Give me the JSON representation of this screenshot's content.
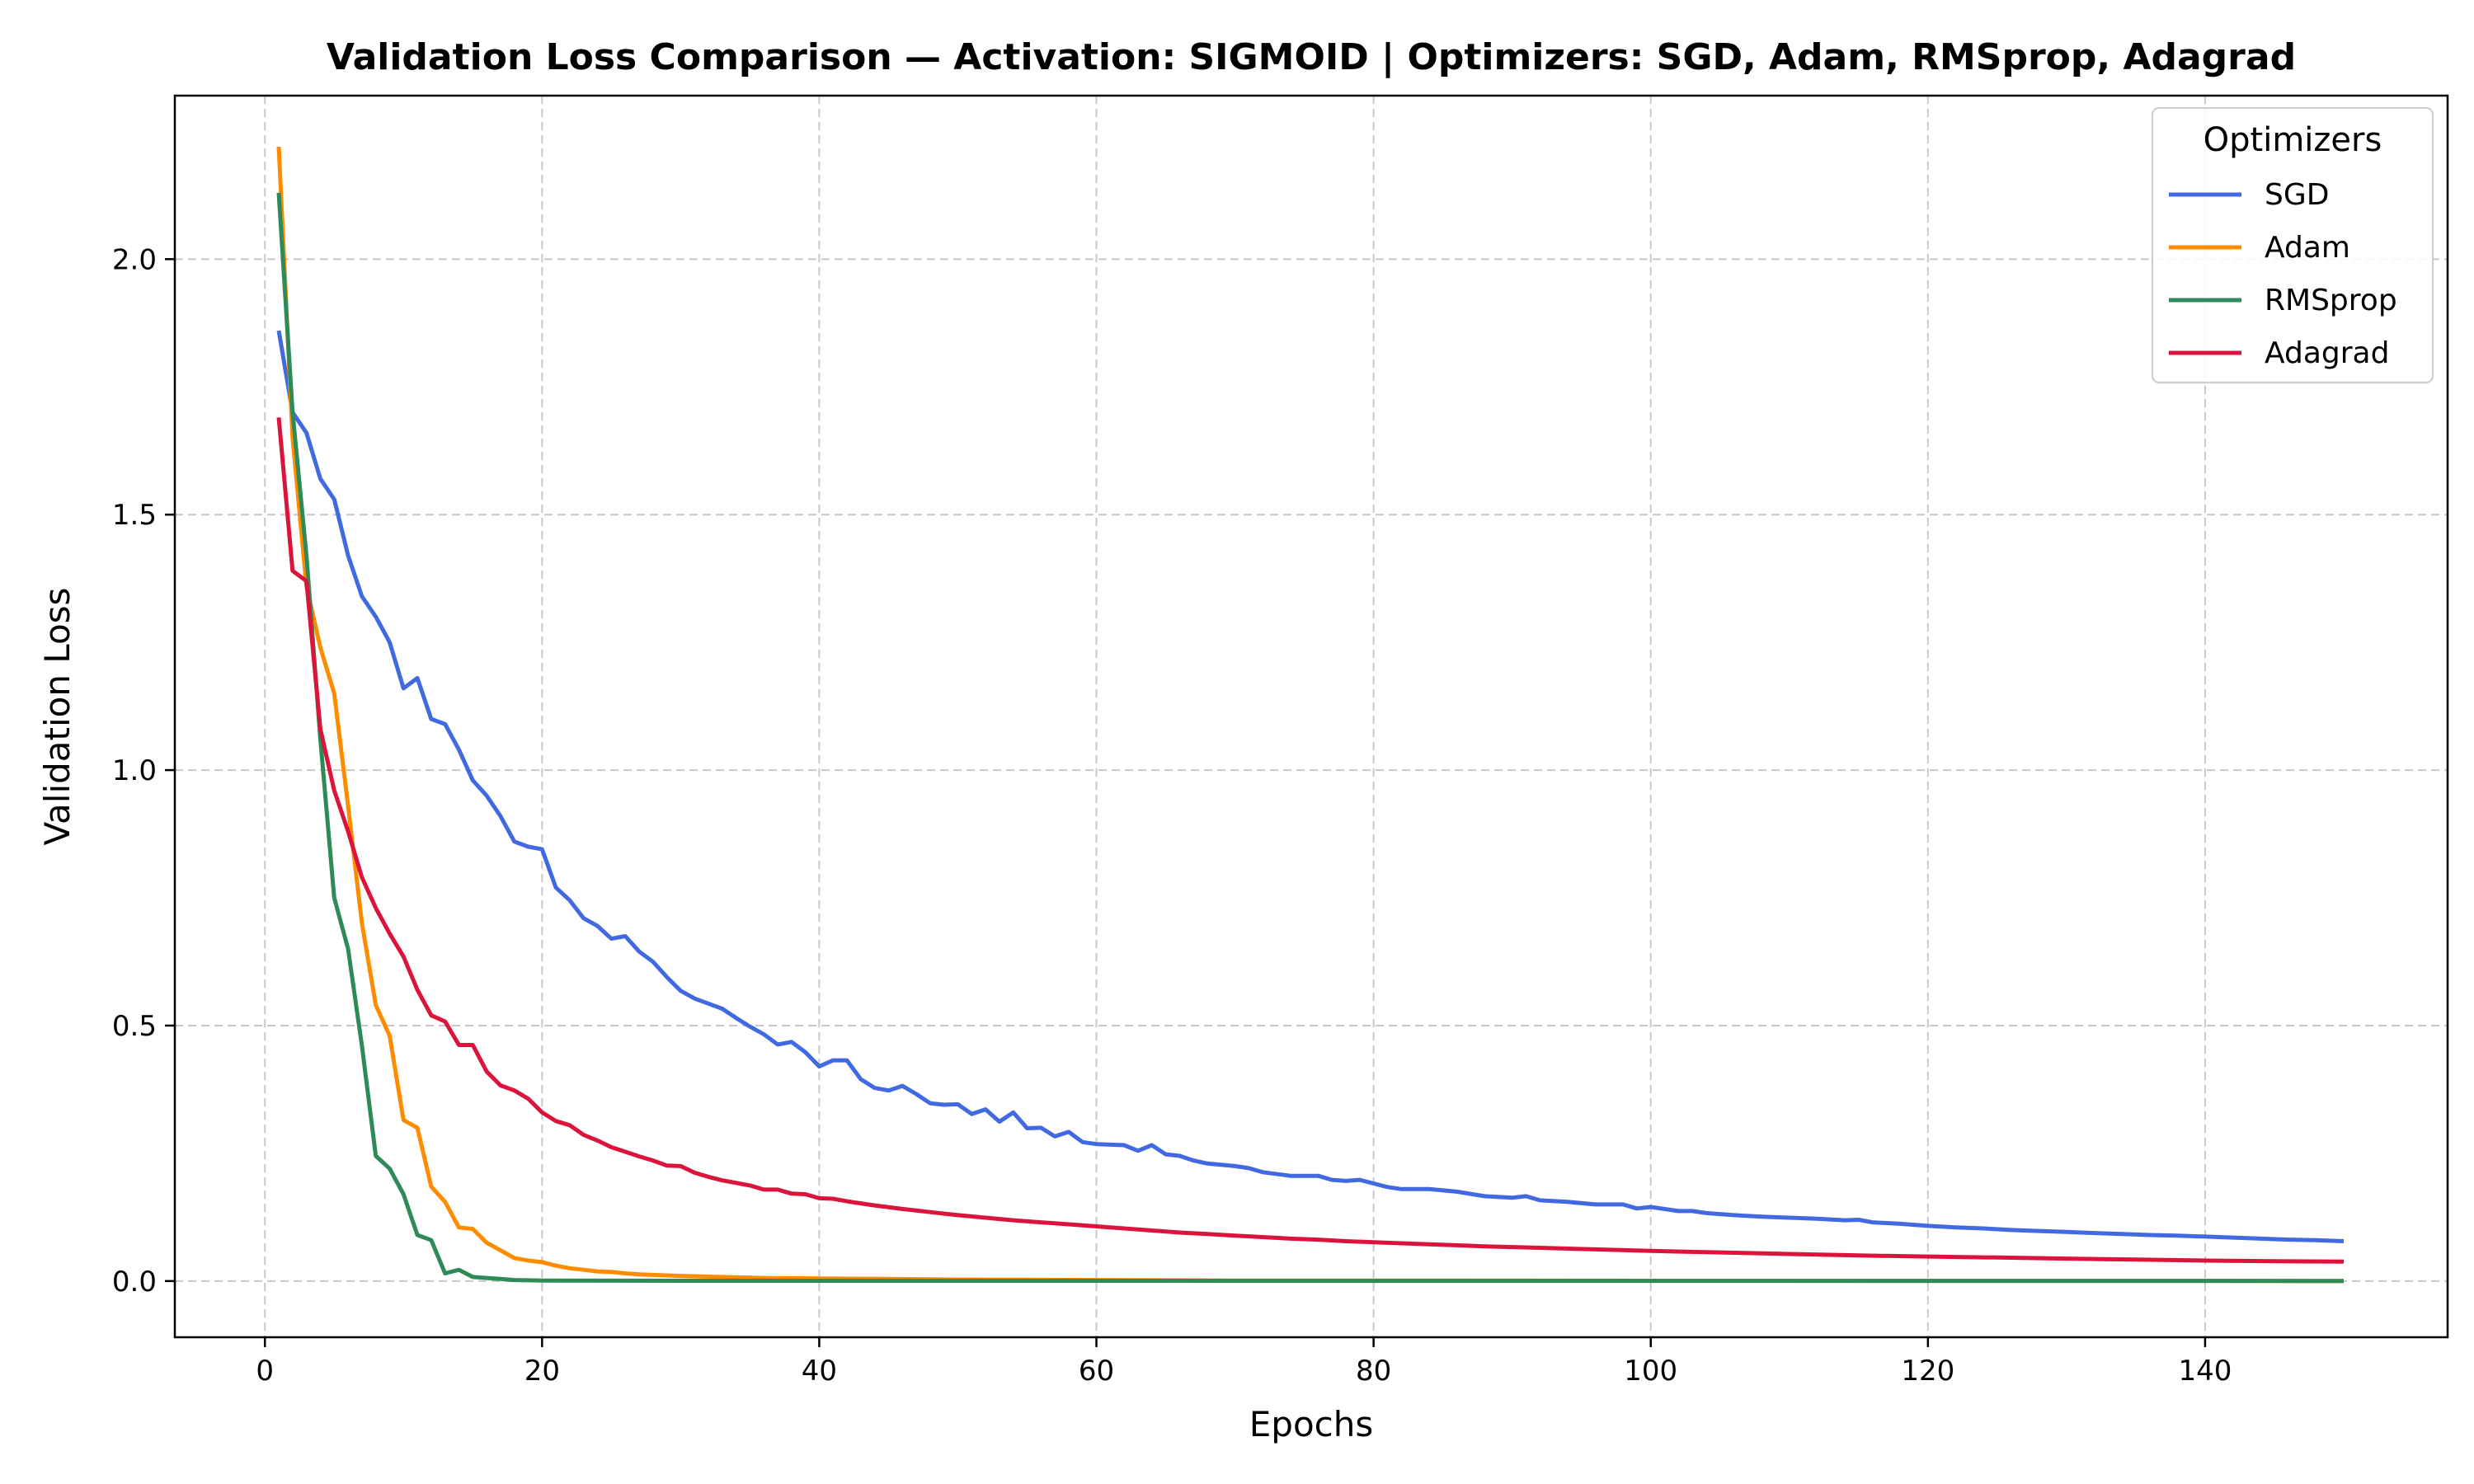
{
  "chart_data": {
    "type": "line",
    "title": "Validation Loss Comparison — Activation: SIGMOID | Optimizers: SGD, Adam, RMSprop, Adagrad",
    "xlabel": "Epochs",
    "ylabel": "Validation Loss",
    "xlim": [
      -6.5,
      157.5
    ],
    "ylim": [
      -0.11,
      2.32
    ],
    "xticks": [
      0,
      20,
      40,
      60,
      80,
      100,
      120,
      140
    ],
    "yticks": [
      0.0,
      0.5,
      1.0,
      1.5,
      2.0
    ],
    "ytick_labels": [
      "0.0",
      "0.5",
      "1.0",
      "1.5",
      "2.0"
    ],
    "grid": true,
    "legend": {
      "title": "Optimizers",
      "placement": "top-right"
    },
    "series": [
      {
        "name": "SGD",
        "color": "#4169e1",
        "points": [
          [
            1,
            1.86
          ],
          [
            2,
            1.7
          ],
          [
            3,
            1.66
          ],
          [
            4,
            1.57
          ],
          [
            5,
            1.53
          ],
          [
            6,
            1.42
          ],
          [
            7,
            1.34
          ],
          [
            8,
            1.3
          ],
          [
            9,
            1.25
          ],
          [
            10,
            1.16
          ],
          [
            11,
            1.18
          ],
          [
            12,
            1.1
          ],
          [
            13,
            1.09
          ],
          [
            14,
            1.04
          ],
          [
            15,
            0.98
          ],
          [
            16,
            0.95
          ],
          [
            17,
            0.91
          ],
          [
            18,
            0.86
          ],
          [
            19,
            0.85
          ],
          [
            20,
            0.845
          ],
          [
            21,
            0.77
          ],
          [
            22,
            0.745
          ],
          [
            23,
            0.71
          ],
          [
            24,
            0.695
          ],
          [
            25,
            0.67
          ],
          [
            26,
            0.675
          ],
          [
            27,
            0.645
          ],
          [
            28,
            0.625
          ],
          [
            29,
            0.595
          ],
          [
            30,
            0.568
          ],
          [
            31,
            0.553
          ],
          [
            32,
            0.543
          ],
          [
            33,
            0.533
          ],
          [
            34,
            0.515
          ],
          [
            35,
            0.498
          ],
          [
            36,
            0.483
          ],
          [
            37,
            0.463
          ],
          [
            38,
            0.468
          ],
          [
            39,
            0.448
          ],
          [
            40,
            0.42
          ],
          [
            41,
            0.432
          ],
          [
            42,
            0.432
          ],
          [
            43,
            0.395
          ],
          [
            44,
            0.378
          ],
          [
            45,
            0.373
          ],
          [
            46,
            0.382
          ],
          [
            47,
            0.366
          ],
          [
            48,
            0.348
          ],
          [
            49,
            0.345
          ],
          [
            50,
            0.346
          ],
          [
            51,
            0.327
          ],
          [
            52,
            0.336
          ],
          [
            53,
            0.312
          ],
          [
            54,
            0.33
          ],
          [
            55,
            0.299
          ],
          [
            56,
            0.3
          ],
          [
            57,
            0.283
          ],
          [
            58,
            0.292
          ],
          [
            59,
            0.272
          ],
          [
            60,
            0.268
          ],
          [
            62,
            0.266
          ],
          [
            63,
            0.255
          ],
          [
            64,
            0.266
          ],
          [
            65,
            0.248
          ],
          [
            66,
            0.245
          ],
          [
            67,
            0.236
          ],
          [
            68,
            0.23
          ],
          [
            70,
            0.225
          ],
          [
            71,
            0.221
          ],
          [
            72,
            0.213
          ],
          [
            74,
            0.206
          ],
          [
            76,
            0.206
          ],
          [
            77,
            0.198
          ],
          [
            78,
            0.196
          ],
          [
            79,
            0.198
          ],
          [
            80,
            0.191
          ],
          [
            81,
            0.184
          ],
          [
            82,
            0.18
          ],
          [
            84,
            0.18
          ],
          [
            86,
            0.175
          ],
          [
            88,
            0.166
          ],
          [
            90,
            0.163
          ],
          [
            91,
            0.166
          ],
          [
            92,
            0.158
          ],
          [
            94,
            0.155
          ],
          [
            96,
            0.15
          ],
          [
            98,
            0.15
          ],
          [
            99,
            0.142
          ],
          [
            100,
            0.145
          ],
          [
            102,
            0.137
          ],
          [
            103,
            0.137
          ],
          [
            104,
            0.133
          ],
          [
            106,
            0.129
          ],
          [
            108,
            0.126
          ],
          [
            110,
            0.124
          ],
          [
            112,
            0.122
          ],
          [
            114,
            0.119
          ],
          [
            115,
            0.12
          ],
          [
            116,
            0.115
          ],
          [
            118,
            0.112
          ],
          [
            120,
            0.108
          ],
          [
            122,
            0.105
          ],
          [
            124,
            0.103
          ],
          [
            126,
            0.1
          ],
          [
            128,
            0.098
          ],
          [
            130,
            0.096
          ],
          [
            132,
            0.094
          ],
          [
            134,
            0.092
          ],
          [
            136,
            0.09
          ],
          [
            138,
            0.089
          ],
          [
            140,
            0.087
          ],
          [
            142,
            0.085
          ],
          [
            144,
            0.083
          ],
          [
            146,
            0.081
          ],
          [
            148,
            0.08
          ],
          [
            150,
            0.078
          ]
        ]
      },
      {
        "name": "Adam",
        "color": "#ff8c00",
        "points": [
          [
            1,
            2.22
          ],
          [
            2,
            1.65
          ],
          [
            3,
            1.36
          ],
          [
            4,
            1.24
          ],
          [
            5,
            1.15
          ],
          [
            6,
            0.93
          ],
          [
            7,
            0.7
          ],
          [
            8,
            0.54
          ],
          [
            9,
            0.48
          ],
          [
            10,
            0.315
          ],
          [
            11,
            0.3
          ],
          [
            12,
            0.185
          ],
          [
            13,
            0.155
          ],
          [
            14,
            0.105
          ],
          [
            15,
            0.102
          ],
          [
            16,
            0.075
          ],
          [
            17,
            0.06
          ],
          [
            18,
            0.045
          ],
          [
            19,
            0.04
          ],
          [
            20,
            0.037
          ],
          [
            21,
            0.03
          ],
          [
            22,
            0.025
          ],
          [
            23,
            0.022
          ],
          [
            24,
            0.019
          ],
          [
            25,
            0.018
          ],
          [
            26,
            0.015
          ],
          [
            27,
            0.013
          ],
          [
            28,
            0.012
          ],
          [
            30,
            0.01
          ],
          [
            33,
            0.008
          ],
          [
            36,
            0.006
          ],
          [
            40,
            0.005
          ],
          [
            45,
            0.004
          ],
          [
            50,
            0.003
          ],
          [
            60,
            0.002
          ],
          [
            70,
            0.001
          ],
          [
            80,
            0.001
          ],
          [
            100,
            0.0005
          ],
          [
            120,
            0.0003
          ],
          [
            150,
            0.0002
          ]
        ]
      },
      {
        "name": "RMSprop",
        "color": "#2e8b57",
        "points": [
          [
            1,
            2.13
          ],
          [
            2,
            1.7
          ],
          [
            3,
            1.42
          ],
          [
            4,
            1.06
          ],
          [
            5,
            0.75
          ],
          [
            6,
            0.65
          ],
          [
            7,
            0.46
          ],
          [
            8,
            0.245
          ],
          [
            9,
            0.22
          ],
          [
            10,
            0.17
          ],
          [
            11,
            0.09
          ],
          [
            12,
            0.08
          ],
          [
            13,
            0.015
          ],
          [
            14,
            0.022
          ],
          [
            15,
            0.008
          ],
          [
            16,
            0.006
          ],
          [
            17,
            0.004
          ],
          [
            18,
            0.002
          ],
          [
            20,
            0.001
          ],
          [
            30,
            0.0005
          ],
          [
            150,
            0.0002
          ]
        ]
      },
      {
        "name": "Adagrad",
        "color": "#dc143c",
        "points": [
          [
            1,
            1.69
          ],
          [
            2,
            1.39
          ],
          [
            3,
            1.37
          ],
          [
            4,
            1.08
          ],
          [
            5,
            0.96
          ],
          [
            6,
            0.88
          ],
          [
            7,
            0.79
          ],
          [
            8,
            0.73
          ],
          [
            9,
            0.68
          ],
          [
            10,
            0.635
          ],
          [
            11,
            0.57
          ],
          [
            12,
            0.52
          ],
          [
            13,
            0.508
          ],
          [
            14,
            0.462
          ],
          [
            15,
            0.462
          ],
          [
            16,
            0.41
          ],
          [
            17,
            0.383
          ],
          [
            18,
            0.373
          ],
          [
            19,
            0.357
          ],
          [
            20,
            0.33
          ],
          [
            21,
            0.313
          ],
          [
            22,
            0.305
          ],
          [
            23,
            0.286
          ],
          [
            24,
            0.275
          ],
          [
            25,
            0.262
          ],
          [
            26,
            0.253
          ],
          [
            27,
            0.244
          ],
          [
            28,
            0.236
          ],
          [
            29,
            0.226
          ],
          [
            30,
            0.225
          ],
          [
            31,
            0.212
          ],
          [
            32,
            0.204
          ],
          [
            33,
            0.197
          ],
          [
            34,
            0.192
          ],
          [
            35,
            0.187
          ],
          [
            36,
            0.179
          ],
          [
            37,
            0.179
          ],
          [
            38,
            0.171
          ],
          [
            39,
            0.17
          ],
          [
            40,
            0.162
          ],
          [
            41,
            0.161
          ],
          [
            42,
            0.156
          ],
          [
            44,
            0.148
          ],
          [
            46,
            0.141
          ],
          [
            48,
            0.135
          ],
          [
            50,
            0.129
          ],
          [
            52,
            0.124
          ],
          [
            54,
            0.119
          ],
          [
            56,
            0.115
          ],
          [
            58,
            0.111
          ],
          [
            60,
            0.107
          ],
          [
            62,
            0.103
          ],
          [
            64,
            0.099
          ],
          [
            66,
            0.095
          ],
          [
            68,
            0.092
          ],
          [
            70,
            0.089
          ],
          [
            72,
            0.086
          ],
          [
            74,
            0.083
          ],
          [
            76,
            0.081
          ],
          [
            78,
            0.078
          ],
          [
            80,
            0.076
          ],
          [
            84,
            0.072
          ],
          [
            88,
            0.068
          ],
          [
            92,
            0.065
          ],
          [
            96,
            0.062
          ],
          [
            100,
            0.059
          ],
          [
            105,
            0.056
          ],
          [
            110,
            0.053
          ],
          [
            115,
            0.05
          ],
          [
            120,
            0.048
          ],
          [
            125,
            0.046
          ],
          [
            130,
            0.044
          ],
          [
            135,
            0.042
          ],
          [
            140,
            0.04
          ],
          [
            145,
            0.039
          ],
          [
            150,
            0.038
          ]
        ]
      }
    ]
  }
}
